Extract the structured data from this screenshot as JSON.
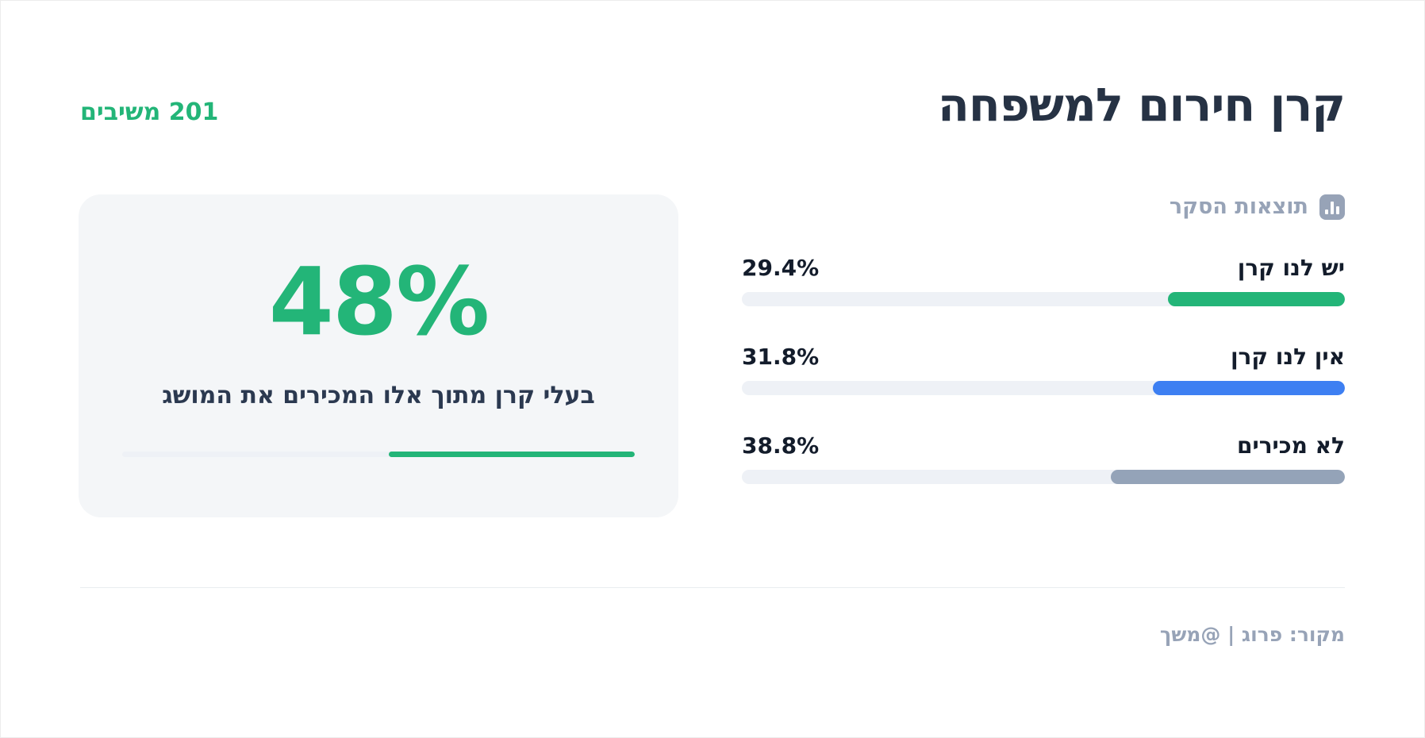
{
  "page": {
    "title": "קרן חירום למשפחה",
    "respondents": "201 משיבים",
    "source": "מקור: פרוג | @משך"
  },
  "survey": {
    "header": "תוצאות הסקר",
    "rows": [
      {
        "label": "יש לנו קרן",
        "pct": "29.4%",
        "value": 29.4,
        "color": "#23b578"
      },
      {
        "label": "אין לנו קרן",
        "pct": "31.8%",
        "value": 31.8,
        "color": "#3d7ff2"
      },
      {
        "label": "לא מכירים",
        "pct": "38.8%",
        "value": 38.8,
        "color": "#94a3b8"
      }
    ]
  },
  "highlight": {
    "value": "48%",
    "caption": "בעלי קרן מתוך אלו המכירים את המושג",
    "progress_pct": 48
  },
  "chart_data": {
    "type": "bar",
    "orientation": "horizontal-rtl",
    "title": "קרן חירום למשפחה",
    "subtitle": "תוצאות הסקר",
    "categories": [
      "יש לנו קרן",
      "אין לנו קרן",
      "לא מכירים"
    ],
    "values": [
      29.4,
      31.8,
      38.8
    ],
    "unit": "%",
    "xlim": [
      0,
      100
    ],
    "colors": [
      "#23b578",
      "#3d7ff2",
      "#94a3b8"
    ],
    "respondents": 201,
    "respondents_label": "201 משיבים",
    "highlight": {
      "value": 48,
      "unit": "%",
      "caption": "בעלי קרן מתוך אלו המכירים את המושג"
    },
    "source": "מקור: פרוג | @משך",
    "grid": false,
    "legend": false
  }
}
